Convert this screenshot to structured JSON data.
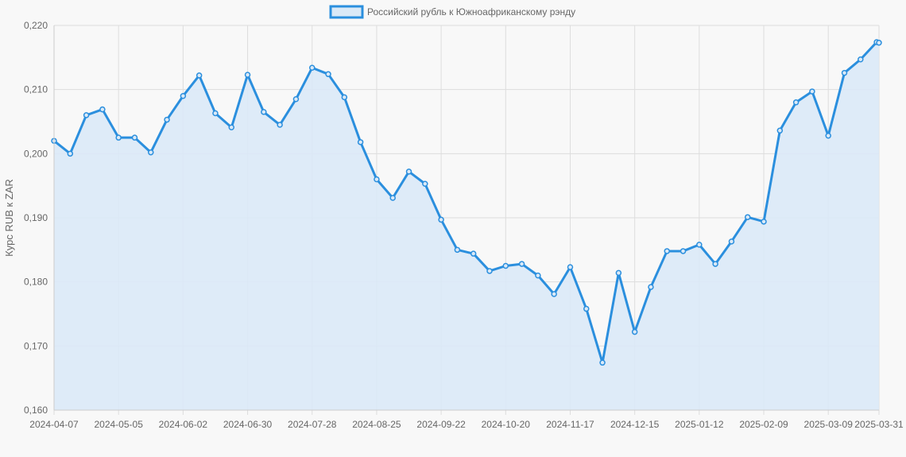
{
  "chart_data": {
    "type": "area",
    "legend": {
      "label": "Российский рубль к Южноафриканскому рэнду",
      "position": "top-center"
    },
    "ylabel": "Курс RUB к ZAR",
    "xlabel": "",
    "ylim": [
      0.16,
      0.22
    ],
    "y_ticks": [
      "0,160",
      "0,170",
      "0,180",
      "0,190",
      "0,200",
      "0,210",
      "0,220"
    ],
    "x_ticks": [
      "2024-04-07",
      "2024-05-05",
      "2024-06-02",
      "2024-06-30",
      "2024-07-28",
      "2024-08-25",
      "2024-09-22",
      "2024-10-20",
      "2024-11-17",
      "2024-12-15",
      "2025-01-12",
      "2025-02-09",
      "2025-03-09",
      "2025-03-31"
    ],
    "grid": true,
    "colors": {
      "line": "#2b8fde",
      "fill": "#dae9f7",
      "grid": "#dddddd",
      "background": "#f8f8f8"
    },
    "series": [
      {
        "name": "Российский рубль к Южноафриканскому рэнду",
        "x": [
          "2024-04-07",
          "2024-04-14",
          "2024-04-21",
          "2024-04-28",
          "2024-05-05",
          "2024-05-12",
          "2024-05-19",
          "2024-05-26",
          "2024-06-02",
          "2024-06-09",
          "2024-06-16",
          "2024-06-23",
          "2024-06-30",
          "2024-07-07",
          "2024-07-14",
          "2024-07-21",
          "2024-07-28",
          "2024-08-04",
          "2024-08-11",
          "2024-08-18",
          "2024-08-25",
          "2024-09-01",
          "2024-09-08",
          "2024-09-15",
          "2024-09-22",
          "2024-09-29",
          "2024-10-06",
          "2024-10-13",
          "2024-10-20",
          "2024-10-27",
          "2024-11-03",
          "2024-11-10",
          "2024-11-17",
          "2024-11-24",
          "2024-12-01",
          "2024-12-08",
          "2024-12-15",
          "2024-12-22",
          "2024-12-29",
          "2025-01-05",
          "2025-01-12",
          "2025-01-19",
          "2025-01-26",
          "2025-02-02",
          "2025-02-09",
          "2025-02-16",
          "2025-02-23",
          "2025-03-02",
          "2025-03-09",
          "2025-03-16",
          "2025-03-23",
          "2025-03-30",
          "2025-03-31"
        ],
        "values": [
          0.202,
          0.2,
          0.206,
          0.2069,
          0.2025,
          0.2025,
          0.2002,
          0.2053,
          0.209,
          0.2122,
          0.2063,
          0.2041,
          0.2123,
          0.2065,
          0.2045,
          0.2085,
          0.2134,
          0.2124,
          0.2088,
          0.2018,
          0.196,
          0.1931,
          0.1972,
          0.1953,
          0.1897,
          0.185,
          0.1844,
          0.1817,
          0.1825,
          0.1828,
          0.181,
          0.1781,
          0.1823,
          0.1758,
          0.1674,
          0.1814,
          0.1722,
          0.1792,
          0.1848,
          0.1848,
          0.1858,
          0.1828,
          0.1863,
          0.1901,
          0.1894,
          0.2036,
          0.208,
          0.2097,
          0.2028,
          0.2126,
          0.2147,
          0.2174,
          0.2173
        ]
      }
    ]
  }
}
